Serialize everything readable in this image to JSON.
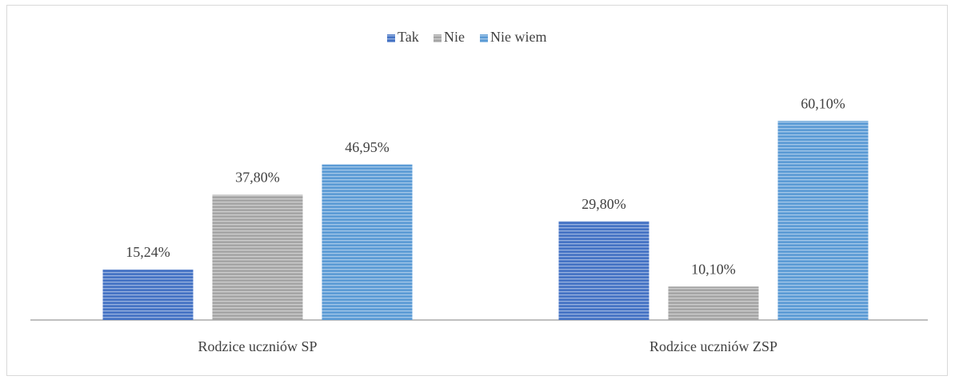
{
  "chart_data": {
    "type": "bar",
    "categories": [
      "Rodzice uczniów SP",
      "Rodzice uczniów ZSP"
    ],
    "series": [
      {
        "name": "Tak",
        "color": "#4472c4",
        "values": [
          15.24,
          29.8
        ],
        "value_labels": [
          "15,24%",
          "29,80%"
        ]
      },
      {
        "name": "Nie",
        "color": "#a5a5a5",
        "values": [
          37.8,
          10.1
        ],
        "value_labels": [
          "37,80%",
          "10,10%"
        ]
      },
      {
        "name": "Nie wiem",
        "color": "#5b9bd5",
        "values": [
          46.95,
          60.1
        ],
        "value_labels": [
          "46,95%",
          "60,10%"
        ]
      }
    ],
    "legend": "top"
  }
}
